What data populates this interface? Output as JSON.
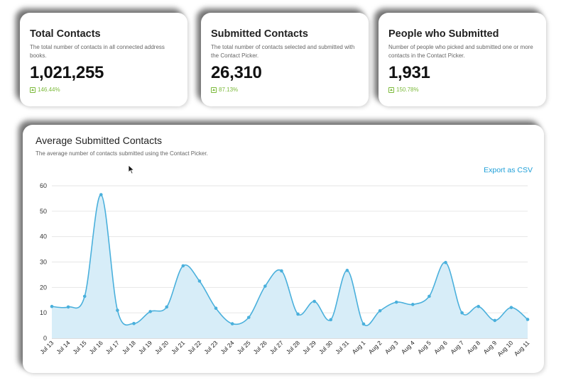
{
  "stats": [
    {
      "title": "Total Contacts",
      "desc": "The total number of contacts in all connected address books.",
      "value": "1,021,255",
      "delta": "146.44%"
    },
    {
      "title": "Submitted Contacts",
      "desc": "The total number of contacts selected and submitted with the Contact Picker.",
      "value": "26,310",
      "delta": "87.13%"
    },
    {
      "title": "People who Submitted",
      "desc": "Number of people who picked and submitted one or more contacts in the Contact Picker.",
      "value": "1,931",
      "delta": "150.78%"
    }
  ],
  "chart_section": {
    "title": "Average Submitted Contacts",
    "subtitle": "The average number of contacts submitted using the Contact Picker.",
    "export_label": "Export as CSV"
  },
  "colors": {
    "accent": "#1e9fd8",
    "line": "#4ab0dc",
    "fill": "#d7edf8",
    "positive": "#7cba3b"
  },
  "icons": {
    "delta": "arrow-up-box-icon",
    "cursor": "mouse-pointer-icon"
  },
  "chart_data": {
    "type": "area",
    "title": "Average Submitted Contacts",
    "categories": [
      "Jul 13",
      "Jul 14",
      "Jul 15",
      "Jul 16",
      "Jul 17",
      "Jul 18",
      "Jul 19",
      "Jul 20",
      "Jul 21",
      "Jul 22",
      "Jul 23",
      "Jul 24",
      "Jul 25",
      "Jul 26",
      "Jul 27",
      "Jul 28",
      "Jul 29",
      "Jul 30",
      "Jul 31",
      "Aug 1",
      "Aug 2",
      "Aug 3",
      "Aug 4",
      "Aug 5",
      "Aug 6",
      "Aug 7",
      "Aug 8",
      "Aug 9",
      "Aug 10",
      "Aug 11"
    ],
    "values": [
      12.5,
      12.3,
      16.5,
      56.5,
      11,
      5.8,
      10.5,
      12.3,
      28.5,
      22.5,
      11.8,
      5.7,
      8.2,
      20.5,
      26.5,
      9.5,
      14.5,
      7.3,
      26.7,
      5.6,
      10.8,
      14.2,
      13.3,
      16.5,
      29.8,
      10,
      12.5,
      7,
      12.1,
      7.4
    ],
    "yticks": [
      0,
      10,
      20,
      30,
      40,
      50,
      60
    ],
    "ylim": [
      0,
      60
    ],
    "grid": true,
    "legend": "none"
  }
}
